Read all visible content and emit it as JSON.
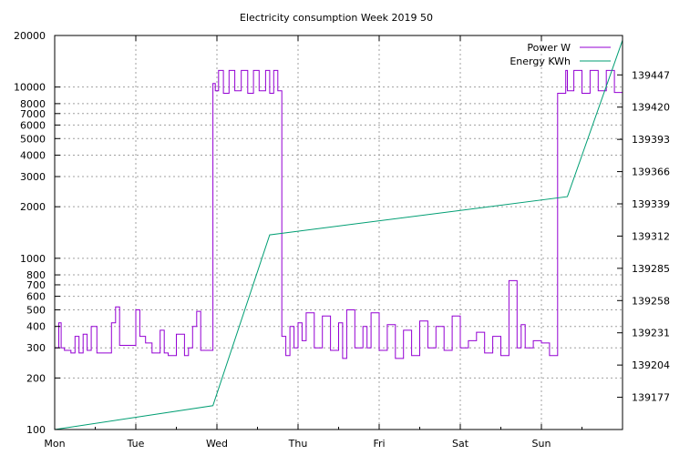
{
  "chart_data": {
    "type": "line",
    "title": "Electricity consumption Week 2019 50",
    "xlabel": "",
    "ylabel": "",
    "y2label": "",
    "x_unit": "days",
    "xlim": [
      0,
      7
    ],
    "x_ticks": [
      {
        "label": "Mon",
        "value": 0
      },
      {
        "label": "Tue",
        "value": 1
      },
      {
        "label": "Wed",
        "value": 2
      },
      {
        "label": "Thu",
        "value": 3
      },
      {
        "label": "Fri",
        "value": 4
      },
      {
        "label": "Sat",
        "value": 5
      },
      {
        "label": "Sun",
        "value": 6
      }
    ],
    "y_scale": "log",
    "ylim": [
      100,
      20000
    ],
    "y_ticks": [
      100,
      200,
      300,
      400,
      500,
      600,
      700,
      800,
      1000,
      2000,
      3000,
      4000,
      5000,
      6000,
      7000,
      8000,
      10000,
      20000
    ],
    "y2lim": [
      139150,
      139480
    ],
    "y2_ticks": [
      139177,
      139204,
      139231,
      139258,
      139285,
      139312,
      139339,
      139366,
      139393,
      139420,
      139447
    ],
    "grid": true,
    "legend_position": "top-right",
    "series": [
      {
        "name": "Power W",
        "color": "#9400d3",
        "axis": "y1",
        "x": [
          0.0,
          0.05,
          0.08,
          0.12,
          0.2,
          0.25,
          0.3,
          0.35,
          0.4,
          0.45,
          0.52,
          0.6,
          0.7,
          0.75,
          0.8,
          0.85,
          0.9,
          0.95,
          1.0,
          1.05,
          1.12,
          1.2,
          1.3,
          1.35,
          1.4,
          1.5,
          1.6,
          1.65,
          1.7,
          1.75,
          1.8,
          1.9,
          1.95,
          1.98,
          2.02,
          2.08,
          2.15,
          2.22,
          2.3,
          2.38,
          2.45,
          2.52,
          2.6,
          2.65,
          2.7,
          2.75,
          2.8,
          2.85,
          2.9,
          2.95,
          3.0,
          3.05,
          3.1,
          3.2,
          3.3,
          3.4,
          3.5,
          3.55,
          3.6,
          3.7,
          3.8,
          3.85,
          3.9,
          4.0,
          4.1,
          4.2,
          4.3,
          4.4,
          4.5,
          4.6,
          4.7,
          4.8,
          4.9,
          5.0,
          5.1,
          5.2,
          5.3,
          5.4,
          5.5,
          5.6,
          5.7,
          5.75,
          5.8,
          5.9,
          6.0,
          6.1,
          6.2,
          6.3,
          6.32,
          6.4,
          6.5,
          6.6,
          6.7,
          6.8,
          6.9,
          7.0
        ],
        "y": [
          300,
          420,
          300,
          290,
          280,
          350,
          280,
          360,
          290,
          400,
          280,
          280,
          420,
          520,
          310,
          310,
          310,
          310,
          500,
          350,
          320,
          280,
          380,
          280,
          270,
          360,
          270,
          300,
          400,
          490,
          290,
          290,
          10500,
          9500,
          12500,
          9200,
          12500,
          9500,
          12500,
          9200,
          12500,
          9500,
          12500,
          9200,
          12500,
          9500,
          350,
          270,
          400,
          300,
          420,
          330,
          480,
          300,
          460,
          290,
          420,
          260,
          500,
          300,
          400,
          300,
          480,
          290,
          410,
          260,
          380,
          270,
          430,
          300,
          400,
          290,
          460,
          300,
          330,
          370,
          280,
          350,
          270,
          740,
          300,
          410,
          300,
          330,
          320,
          270,
          9200,
          12500,
          9500,
          12500,
          9200,
          12500,
          9500,
          12500,
          9300,
          9000
        ]
      },
      {
        "name": "Energy KWh",
        "color": "#009e73",
        "axis": "y2",
        "x": [
          0.0,
          1.95,
          2.65,
          6.32,
          7.0
        ],
        "y": [
          139150,
          139170,
          139313,
          139345,
          139476
        ]
      }
    ]
  }
}
